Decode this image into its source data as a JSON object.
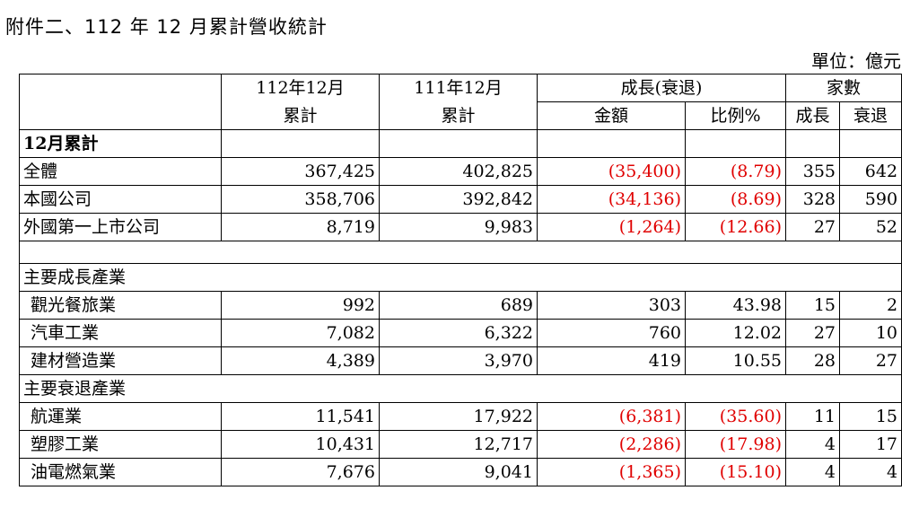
{
  "title": "附件二、112 年 12 月累計營收統計",
  "unit": "單位：億元",
  "headers": {
    "col1_line1": "112年12月",
    "col1_line2": "累計",
    "col2_line1": "111年12月",
    "col2_line2": "累計",
    "growth": "成長(衰退)",
    "amount": "金額",
    "ratio": "比例%",
    "companies": "家數",
    "grow": "成長",
    "decline": "衰退"
  },
  "section1": {
    "label": "12月累計",
    "rows": [
      {
        "name": "全體",
        "cur": "367,425",
        "prev": "402,825",
        "amt": "(35,400)",
        "pct": "(8.79)",
        "up": "355",
        "down": "642"
      },
      {
        "name": "本國公司",
        "cur": "358,706",
        "prev": "392,842",
        "amt": "(34,136)",
        "pct": "(8.69)",
        "up": "328",
        "down": "590"
      },
      {
        "name": "外國第一上市公司",
        "cur": "8,719",
        "prev": "9,983",
        "amt": "(1,264)",
        "pct": "(12.66)",
        "up": "27",
        "down": "52"
      }
    ]
  },
  "growth_section": {
    "label": "主要成長產業",
    "rows": [
      {
        "name": "觀光餐旅業",
        "cur": "992",
        "prev": "689",
        "amt": "303",
        "pct": "43.98",
        "up": "15",
        "down": "2"
      },
      {
        "name": "汽車工業",
        "cur": "7,082",
        "prev": "6,322",
        "amt": "760",
        "pct": "12.02",
        "up": "27",
        "down": "10"
      },
      {
        "name": "建材營造業",
        "cur": "4,389",
        "prev": "3,970",
        "amt": "419",
        "pct": "10.55",
        "up": "28",
        "down": "27"
      }
    ]
  },
  "decline_section": {
    "label": "主要衰退產業",
    "rows": [
      {
        "name": "航運業",
        "cur": "11,541",
        "prev": "17,922",
        "amt": "(6,381)",
        "pct": "(35.60)",
        "up": "11",
        "down": "15"
      },
      {
        "name": "塑膠工業",
        "cur": "10,431",
        "prev": "12,717",
        "amt": "(2,286)",
        "pct": "(17.98)",
        "up": "4",
        "down": "17"
      },
      {
        "name": "油電燃氣業",
        "cur": "7,676",
        "prev": "9,041",
        "amt": "(1,365)",
        "pct": "(15.10)",
        "up": "4",
        "down": "4"
      }
    ]
  },
  "colors": {
    "negative": "#e00000",
    "text": "#000000"
  }
}
